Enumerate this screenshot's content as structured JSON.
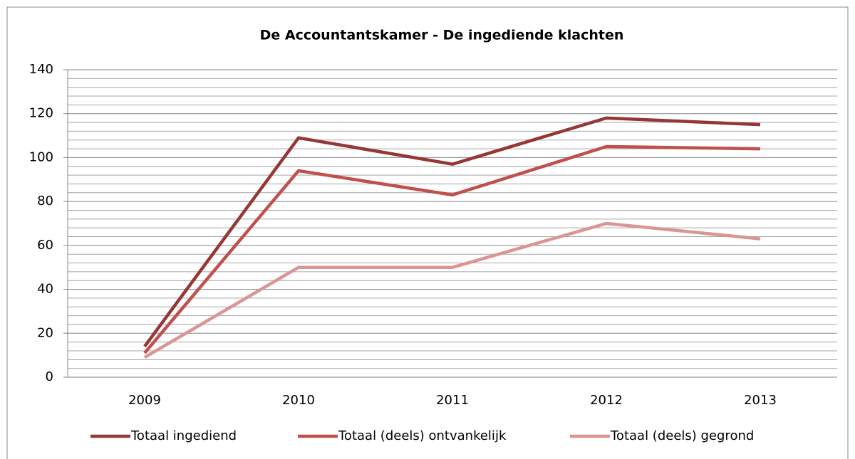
{
  "chart_data": {
    "type": "line",
    "title": "De Accountantskamer - De ingediende klachten",
    "categories": [
      "2009",
      "2010",
      "2011",
      "2012",
      "2013"
    ],
    "series": [
      {
        "name": "Totaal ingediend",
        "color": "#953735",
        "values": [
          14,
          109,
          97,
          118,
          115
        ]
      },
      {
        "name": "Totaal (deels) ontvankelijk",
        "color": "#c0504d",
        "values": [
          11,
          94,
          83,
          105,
          104
        ]
      },
      {
        "name": "Totaal (deels) gegrond",
        "color": "#d99694",
        "values": [
          9,
          50,
          50,
          70,
          63
        ]
      }
    ],
    "ylim": [
      0,
      140
    ],
    "yticks": [
      0,
      20,
      40,
      60,
      80,
      100,
      120,
      140
    ],
    "yminorticks": [
      4,
      8,
      12,
      16,
      24,
      28,
      32,
      36,
      44,
      48,
      52,
      56,
      64,
      68,
      72,
      76,
      84,
      88,
      92,
      96,
      104,
      108,
      112,
      116,
      124,
      128,
      132,
      136
    ],
    "grid": true,
    "legend": "bottom"
  }
}
